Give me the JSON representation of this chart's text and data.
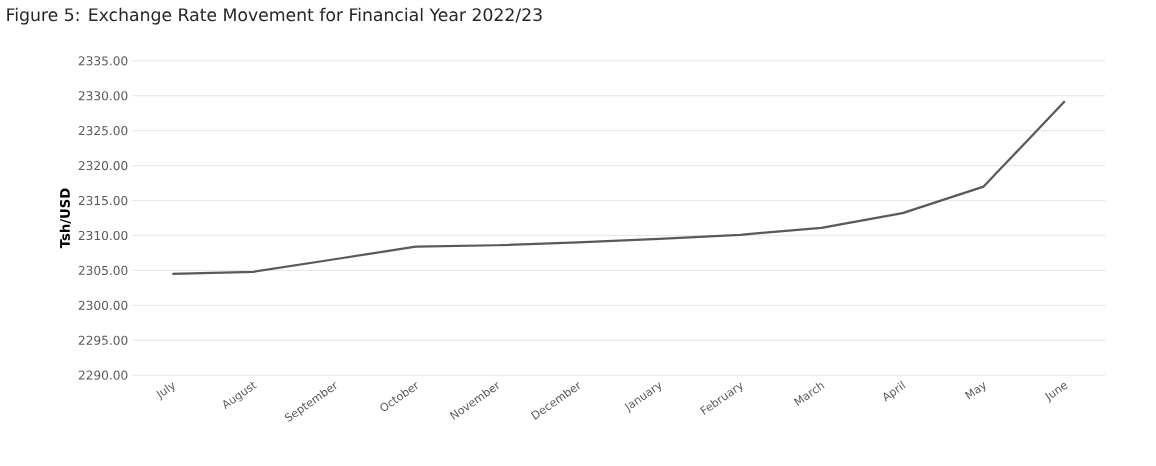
{
  "chart_data": {
    "type": "line",
    "title": "Figure 5: Exchange Rate Movement for Financial Year 2022/23",
    "ylabel": "Tsh/USD",
    "categories": [
      "July",
      "August",
      "September",
      "October",
      "November",
      "December",
      "January",
      "February",
      "March",
      "April",
      "May",
      "June"
    ],
    "series": [
      {
        "color": "#595959",
        "values": [
          2304.5,
          2304.8,
          2306.6,
          2308.4,
          2308.6,
          2309.0,
          2309.5,
          2310.1,
          2311.1,
          2313.2,
          2317.0,
          2329.2
        ]
      }
    ],
    "ylim": [
      2290,
      2335
    ],
    "yticks": [
      {
        "value": 2290,
        "label": "2290.00"
      },
      {
        "value": 2295,
        "label": "2295.00"
      },
      {
        "value": 2300,
        "label": "2300.00"
      },
      {
        "value": 2305,
        "label": "2305.00"
      },
      {
        "value": 2310,
        "label": "2310.00"
      },
      {
        "value": 2315,
        "label": "2315.00"
      },
      {
        "value": 2320,
        "label": "2320.00"
      },
      {
        "value": 2325,
        "label": "2325.00"
      },
      {
        "value": 2330,
        "label": "2330.00"
      },
      {
        "value": 2335,
        "label": "2335.00"
      }
    ],
    "grid": "y",
    "marker": "none",
    "line_style": "solid"
  }
}
